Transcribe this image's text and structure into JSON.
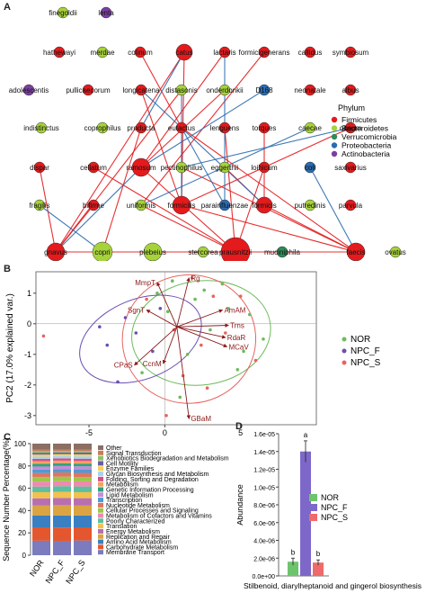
{
  "panels": {
    "a": "A",
    "b": "B",
    "c": "C",
    "d": "D"
  },
  "network": {
    "legend_title": "Phylum",
    "phyla": [
      {
        "name": "Firmicutes",
        "color": "#e41a1c"
      },
      {
        "name": "Bacteroidetes",
        "color": "#a6d23a"
      },
      {
        "name": "Verrucomicrobia",
        "color": "#2e8b57"
      },
      {
        "name": "Proteobacteria",
        "color": "#2b6cb0"
      },
      {
        "name": "Actinobacteria",
        "color": "#7b3fa0"
      }
    ],
    "nodes": [
      {
        "label": "finegoldii",
        "phylum": 1
      },
      {
        "label": "lenta",
        "phylum": 4
      },
      {
        "label": "hathewayi",
        "phylum": 0
      },
      {
        "label": "merdae",
        "phylum": 1
      },
      {
        "label": "colinum",
        "phylum": 0
      },
      {
        "label": "catus",
        "phylum": 0
      },
      {
        "label": "lactaris",
        "phylum": 0
      },
      {
        "label": "formicigenerans",
        "phylum": 0
      },
      {
        "label": "callidus",
        "phylum": 0
      },
      {
        "label": "symbiosum",
        "phylum": 0
      },
      {
        "label": "adolescentis",
        "phylum": 4
      },
      {
        "label": "pullicaecorum",
        "phylum": 0
      },
      {
        "label": "longicatena",
        "phylum": 0
      },
      {
        "label": "distasonis",
        "phylum": 1
      },
      {
        "label": "onderdonkii",
        "phylum": 1
      },
      {
        "label": "D168",
        "phylum": 3
      },
      {
        "label": "neonatale",
        "phylum": 0
      },
      {
        "label": "albus",
        "phylum": 0
      },
      {
        "label": "indistinctus",
        "phylum": 1
      },
      {
        "label": "coprophilus",
        "phylum": 1
      },
      {
        "label": "producta",
        "phylum": 0
      },
      {
        "label": "eutactus",
        "phylum": 0
      },
      {
        "label": "lenguens",
        "phylum": 0
      },
      {
        "label": "torques",
        "phylum": 0
      },
      {
        "label": "caecae",
        "phylum": 1
      },
      {
        "label": "obeum",
        "phylum": 0
      },
      {
        "label": "dispar",
        "phylum": 0
      },
      {
        "label": "cellatum",
        "phylum": 0
      },
      {
        "label": "ramosum",
        "phylum": 0
      },
      {
        "label": "pectinophilus",
        "phylum": 1
      },
      {
        "label": "eggerthii",
        "phylum": 1
      },
      {
        "label": "loihicum",
        "phylum": 0
      },
      {
        "label": "coli",
        "phylum": 3
      },
      {
        "label": "saxivarius",
        "phylum": 0
      },
      {
        "label": "fragilis",
        "phylum": 1
      },
      {
        "label": "bifirme",
        "phylum": 0
      },
      {
        "label": "uniformis",
        "phylum": 1
      },
      {
        "label": "formicilis",
        "phylum": 0
      },
      {
        "label": "parainfluenzae",
        "phylum": 3
      },
      {
        "label": "formicis",
        "phylum": 0
      },
      {
        "label": "putredinis",
        "phylum": 1
      },
      {
        "label": "parvula",
        "phylum": 0
      },
      {
        "label": "gnavus",
        "phylum": 0
      },
      {
        "label": "copri",
        "phylum": 1
      },
      {
        "label": "plebeius",
        "phylum": 1
      },
      {
        "label": "stercorea",
        "phylum": 1
      },
      {
        "label": "prausnitzii",
        "phylum": 0
      },
      {
        "label": "muciniphila",
        "phylum": 2
      },
      {
        "label": "faecis",
        "phylum": 0
      },
      {
        "label": "ovatus",
        "phylum": 1
      }
    ]
  },
  "pca": {
    "xlabel": "PC1 (50.7% explained var.)",
    "ylabel": "PC2 (17.0% explained var.)",
    "xticks": [
      -5,
      0,
      5
    ],
    "yticks": [
      1,
      0,
      -1,
      -2,
      -3
    ],
    "xlim": [
      -8.5,
      10
    ],
    "ylim": [
      -3.3,
      1.7
    ],
    "legend": [
      {
        "name": "NOR",
        "color": "#6dbb5c"
      },
      {
        "name": "NPC_F",
        "color": "#6a4fb0"
      },
      {
        "name": "NPC_S",
        "color": "#e8645f"
      }
    ],
    "vectors": [
      {
        "label": "MmpT",
        "x": -1.3,
        "y": 1.45
      },
      {
        "label": "Rg",
        "x": 0.8,
        "y": 1.6
      },
      {
        "label": "SgnT",
        "x": -2.0,
        "y": 0.55
      },
      {
        "label": "AmAM",
        "x": 3.0,
        "y": 0.55
      },
      {
        "label": "Trns",
        "x": 3.4,
        "y": 0.05
      },
      {
        "label": "RdaR",
        "x": 3.2,
        "y": -0.35
      },
      {
        "label": "MCaV",
        "x": 3.3,
        "y": -0.65
      },
      {
        "label": "CPaS",
        "x": -2.8,
        "y": -1.25
      },
      {
        "label": "CcnM",
        "x": -0.9,
        "y": -1.2
      },
      {
        "label": "GBaM",
        "x": 0.8,
        "y": -3.0
      }
    ],
    "points": [
      {
        "g": 0,
        "x": 0.5,
        "y": 1.4
      },
      {
        "g": 0,
        "x": 2.0,
        "y": 0.8
      },
      {
        "g": 0,
        "x": 4.2,
        "y": 0.5
      },
      {
        "g": 0,
        "x": 5.6,
        "y": 0.3
      },
      {
        "g": 0,
        "x": 3.0,
        "y": -0.2
      },
      {
        "g": 0,
        "x": 1.5,
        "y": -1.0
      },
      {
        "g": 0,
        "x": 6.5,
        "y": -0.5
      },
      {
        "g": 0,
        "x": 0.2,
        "y": 0.4
      },
      {
        "g": 0,
        "x": -0.5,
        "y": 1.0
      },
      {
        "g": 0,
        "x": 2.6,
        "y": 1.1
      },
      {
        "g": 0,
        "x": 4.8,
        "y": -1.5
      },
      {
        "g": 0,
        "x": 1.0,
        "y": -2.4
      },
      {
        "g": 0,
        "x": 3.8,
        "y": 1.3
      },
      {
        "g": 0,
        "x": -1.5,
        "y": -1.6
      },
      {
        "g": 0,
        "x": 5.2,
        "y": -0.9
      },
      {
        "g": 1,
        "x": -4.3,
        "y": -0.1
      },
      {
        "g": 1,
        "x": -3.8,
        "y": -0.7
      },
      {
        "g": 1,
        "x": -2.6,
        "y": 0.2
      },
      {
        "g": 1,
        "x": -1.9,
        "y": -0.3
      },
      {
        "g": 1,
        "x": -0.8,
        "y": -0.9
      },
      {
        "g": 1,
        "x": -3.1,
        "y": -1.9
      },
      {
        "g": 1,
        "x": -0.3,
        "y": 0.5
      },
      {
        "g": 2,
        "x": -8.0,
        "y": -0.4
      },
      {
        "g": 2,
        "x": 1.8,
        "y": 1.5
      },
      {
        "g": 2,
        "x": 3.2,
        "y": 0.9
      },
      {
        "g": 2,
        "x": 0.6,
        "y": -0.2
      },
      {
        "g": 2,
        "x": 2.4,
        "y": -0.7
      },
      {
        "g": 2,
        "x": 4.0,
        "y": -0.3
      },
      {
        "g": 2,
        "x": -1.2,
        "y": 0.8
      },
      {
        "g": 2,
        "x": 1.2,
        "y": -1.7
      },
      {
        "g": 2,
        "x": 2.8,
        "y": -2.1
      },
      {
        "g": 2,
        "x": 0.1,
        "y": -3.0
      },
      {
        "g": 2,
        "x": 5.0,
        "y": 0.9
      },
      {
        "g": 2,
        "x": 6.0,
        "y": -1.2
      }
    ],
    "ellipses": [
      {
        "g": 0,
        "cx": 2.4,
        "cy": -0.3,
        "rx": 4.6,
        "ry": 1.7,
        "angle": 8
      },
      {
        "g": 1,
        "cx": -1.6,
        "cy": -0.5,
        "rx": 4.2,
        "ry": 1.3,
        "angle": 22
      },
      {
        "g": 2,
        "cx": 1.6,
        "cy": -0.5,
        "rx": 4.4,
        "ry": 2.1,
        "angle": 4
      }
    ]
  },
  "bars": {
    "ylabel": "Sequence Number Percentage(%)",
    "yticks": [
      "0",
      "20",
      "40",
      "60",
      "80",
      "100"
    ],
    "groups": [
      "NOR",
      "NPC_F",
      "NPC_S"
    ],
    "categories": [
      {
        "name": "Membrane Transport",
        "color": "#7b7bbd",
        "values": [
          13.0,
          12.5,
          13.2
        ]
      },
      {
        "name": "Carbohydrate Metabolism",
        "color": "#e4572e",
        "values": [
          12.0,
          12.2,
          11.8
        ]
      },
      {
        "name": "Amino Acid Metabolism",
        "color": "#3a7fc1",
        "values": [
          10.5,
          10.8,
          10.6
        ]
      },
      {
        "name": "Replication and Repair",
        "color": "#d9a441",
        "values": [
          9.0,
          9.2,
          8.9
        ]
      },
      {
        "name": "Energy Metabolism",
        "color": "#b86fb1",
        "values": [
          6.5,
          6.4,
          6.6
        ]
      },
      {
        "name": "Translation",
        "color": "#f2c14e",
        "values": [
          5.5,
          5.6,
          5.4
        ]
      },
      {
        "name": "Poorly Characterized",
        "color": "#5cbfa0",
        "values": [
          5.0,
          5.0,
          5.1
        ]
      },
      {
        "name": "Metabolism of Cofactors and Vitamins",
        "color": "#ee8ab0",
        "values": [
          4.5,
          4.4,
          4.6
        ]
      },
      {
        "name": "Cellular Processes and Signaling",
        "color": "#9dc64a",
        "values": [
          4.0,
          4.1,
          3.9
        ]
      },
      {
        "name": "Nucleotide Metabolism",
        "color": "#e0755f",
        "values": [
          3.7,
          3.8,
          3.7
        ]
      },
      {
        "name": "Transcription",
        "color": "#4e9bd4",
        "values": [
          3.0,
          3.0,
          3.1
        ]
      },
      {
        "name": "Lipid Metabolism",
        "color": "#c78bd8",
        "values": [
          2.8,
          2.7,
          2.8
        ]
      },
      {
        "name": "Genetic Information Processing",
        "color": "#2fa37a",
        "values": [
          2.5,
          2.5,
          2.4
        ]
      },
      {
        "name": "Metabolism",
        "color": "#f4a261",
        "values": [
          2.3,
          2.3,
          2.3
        ]
      },
      {
        "name": "Folding, Sorting and Degradation",
        "color": "#d64f8a",
        "values": [
          2.1,
          2.0,
          2.1
        ]
      },
      {
        "name": "Glycan Biosynthesis and Metabolism",
        "color": "#a2d5f2",
        "values": [
          2.0,
          2.0,
          2.1
        ]
      },
      {
        "name": "Enzyme Families",
        "color": "#f7d154",
        "values": [
          1.8,
          1.8,
          1.8
        ]
      },
      {
        "name": "Cell Motility",
        "color": "#6c5ba7",
        "values": [
          1.6,
          1.5,
          1.6
        ]
      },
      {
        "name": "Xenobiotics Biodegradation and Metabolism",
        "color": "#90be6d",
        "values": [
          1.5,
          1.4,
          1.5
        ]
      },
      {
        "name": "Signal Transduction",
        "color": "#c97c5d",
        "values": [
          1.2,
          1.3,
          1.2
        ]
      },
      {
        "name": "Other",
        "color": "#8d6e63",
        "values": [
          5.5,
          5.2,
          5.3
        ]
      }
    ]
  },
  "abundance": {
    "ylabel": "Abundance",
    "xlabel": "Stilbenoid, diarylheptanoid and gingerol biosynthesis",
    "yticks": [
      "0.0e+00",
      "2.0e-06",
      "4.0e-06",
      "6.0e-06",
      "8.0e-06",
      "1.0e-05",
      "1.2e-05",
      "1.4e-05",
      "1.6e-05"
    ],
    "ylim": [
      0,
      1.6e-05
    ],
    "bars": [
      {
        "name": "NOR",
        "value": 1.6e-06,
        "err": 4e-07,
        "color": "#6dc46d",
        "letter": "b"
      },
      {
        "name": "NPC_F",
        "value": 1.4e-05,
        "err": 1.2e-06,
        "color": "#7d68c9",
        "letter": "a"
      },
      {
        "name": "NPC_S",
        "value": 1.5e-06,
        "err": 3e-07,
        "color": "#ef6a6a",
        "letter": "b"
      }
    ]
  },
  "chart_data": [
    {
      "type": "scatter",
      "xlabel": "PC1 (50.7% explained var.)",
      "ylabel": "PC2 (17.0% explained var.)",
      "series": [
        {
          "name": "NOR"
        },
        {
          "name": "NPC_F"
        },
        {
          "name": "NPC_S"
        }
      ]
    },
    {
      "type": "bar",
      "categories": [
        "NOR",
        "NPC_F",
        "NPC_S"
      ],
      "ylabel": "Sequence Number Percentage(%)",
      "ylim": [
        0,
        100
      ]
    },
    {
      "type": "bar",
      "categories": [
        "NOR",
        "NPC_F",
        "NPC_S"
      ],
      "values": [
        1.6e-06,
        1.4e-05,
        1.5e-06
      ],
      "ylabel": "Abundance",
      "xlabel": "Stilbenoid, diarylheptanoid and gingerol biosynthesis",
      "ylim": [
        0,
        1.6e-05
      ]
    }
  ]
}
